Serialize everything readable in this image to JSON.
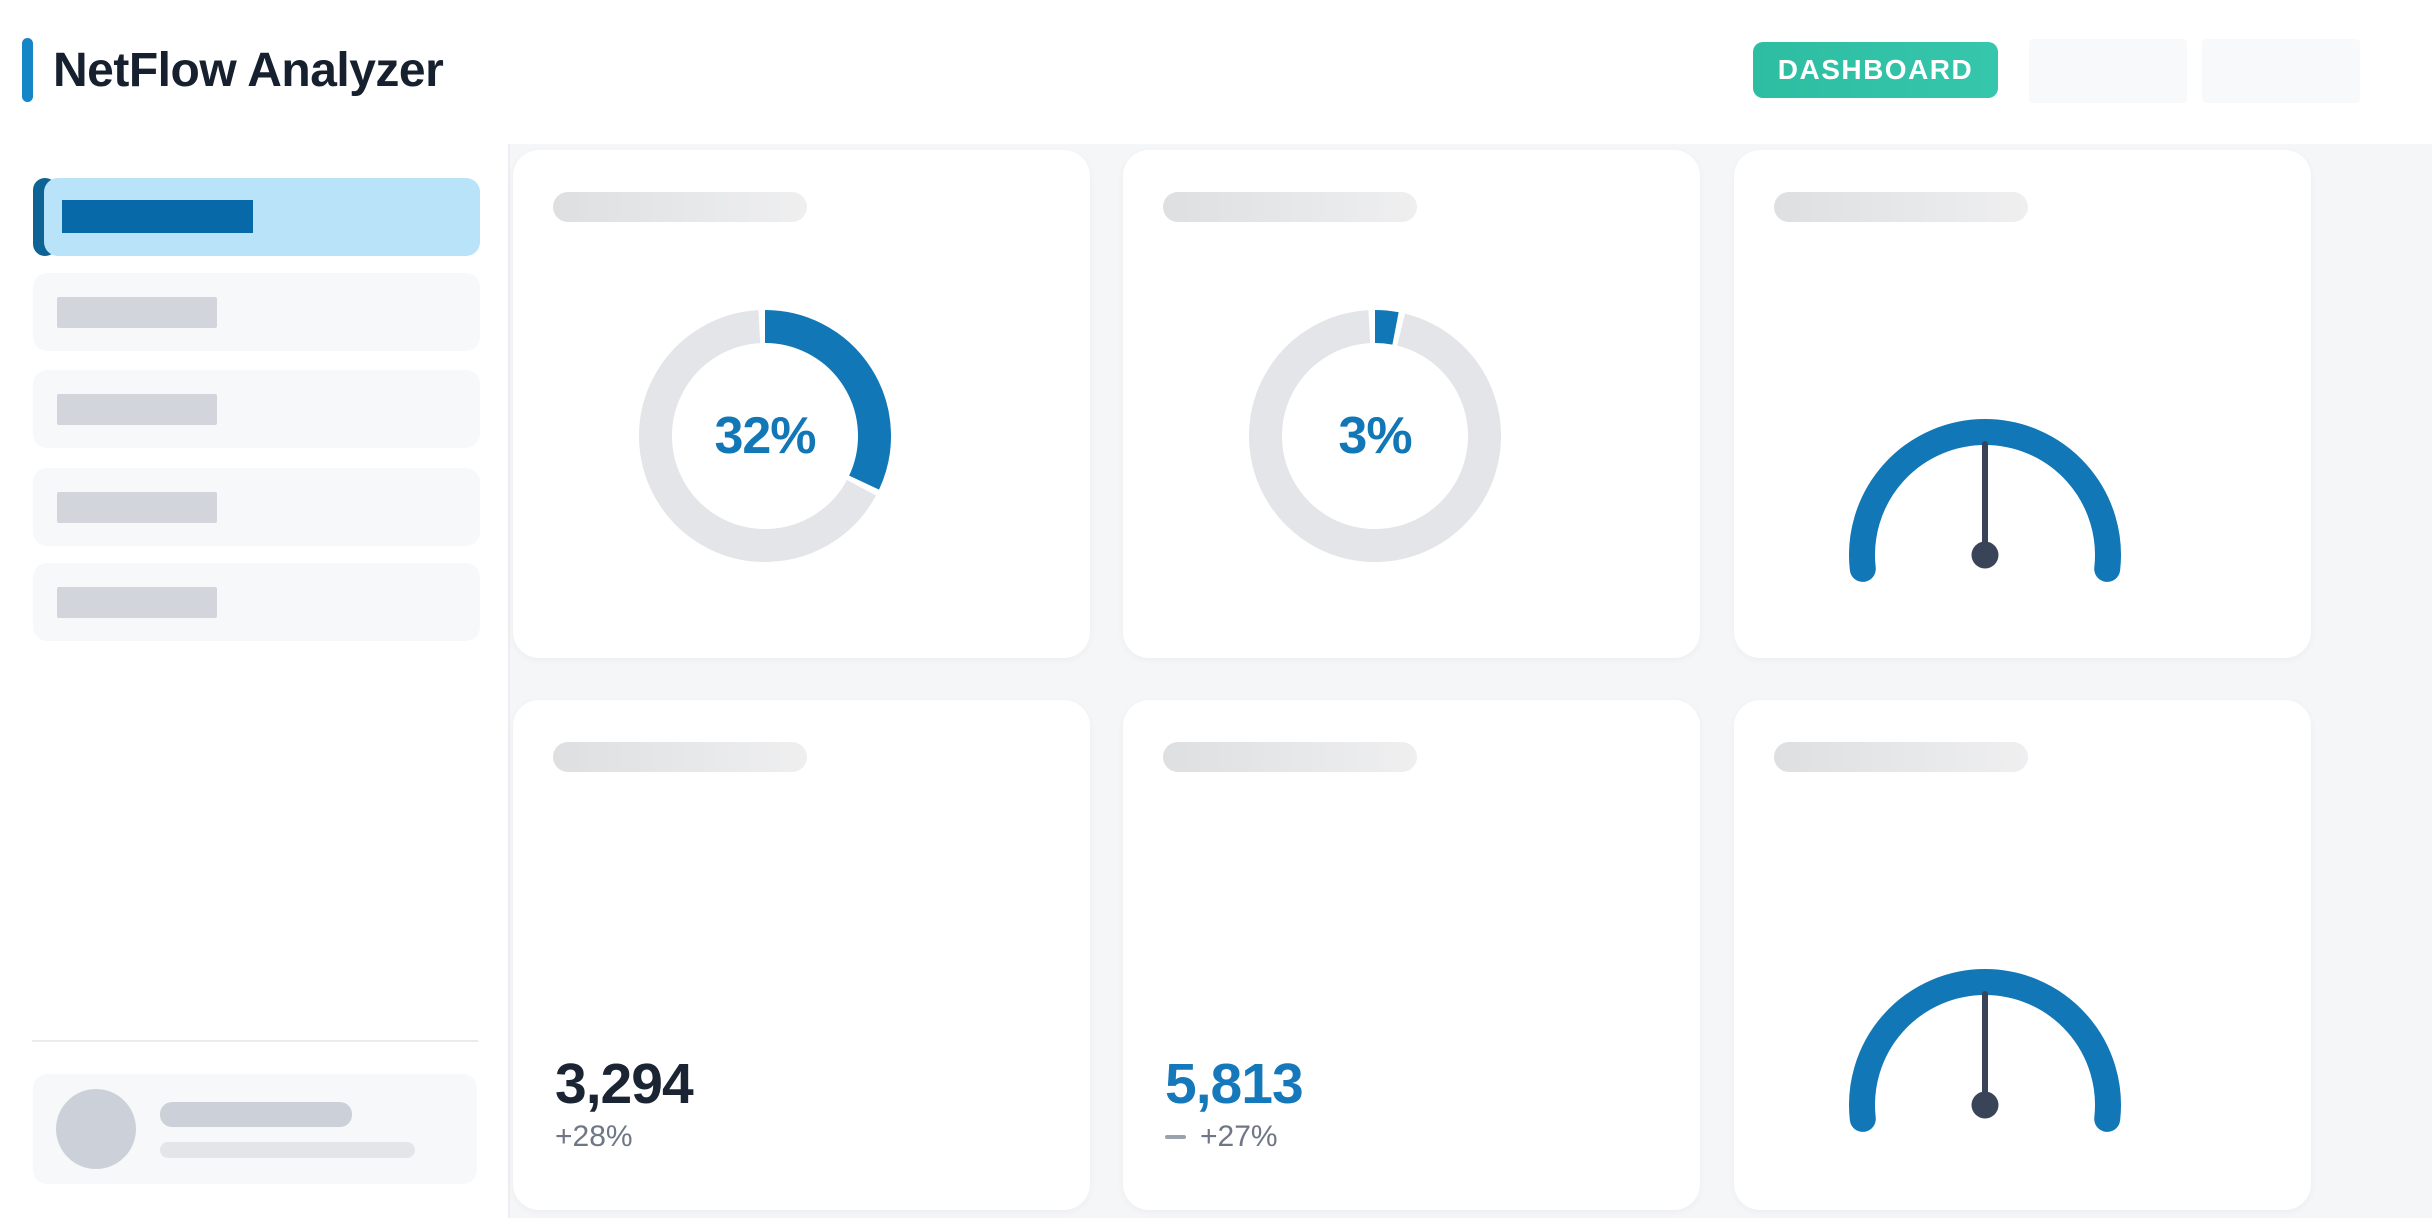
{
  "header": {
    "title": "NetFlow Analyzer",
    "dashboard_label": "DASHBOARD"
  },
  "colors": {
    "accent_blue": "#1277b6",
    "teal": "#2ebfa6",
    "track_gray": "#e3e5e8",
    "needle_dark": "#3a4458",
    "dark_text": "#1b2433",
    "muted_text": "#6f7786"
  },
  "chart_data": [
    {
      "type": "donut",
      "label": "32%",
      "percent": 32,
      "color": "#1277b6",
      "track": "#e3e5e8"
    },
    {
      "type": "donut",
      "label": "3%",
      "percent": 3,
      "color": "#1277b6",
      "track": "#e3e5e8"
    },
    {
      "type": "gauge",
      "needle_angle_deg": 0,
      "arc_start_deg": -96.5,
      "arc_end_deg": 96.5,
      "arc_color": "#1277b6",
      "needle_color": "#3a4458"
    },
    {
      "type": "stat",
      "value": "3,294",
      "delta": "+28%"
    },
    {
      "type": "stat",
      "value": "5,813",
      "delta": "+27%",
      "dash_icon": true
    },
    {
      "type": "gauge",
      "needle_angle_deg": 0,
      "arc_start_deg": -96.5,
      "arc_end_deg": 96.5,
      "arc_color": "#1277b6",
      "needle_color": "#3a4458"
    }
  ]
}
